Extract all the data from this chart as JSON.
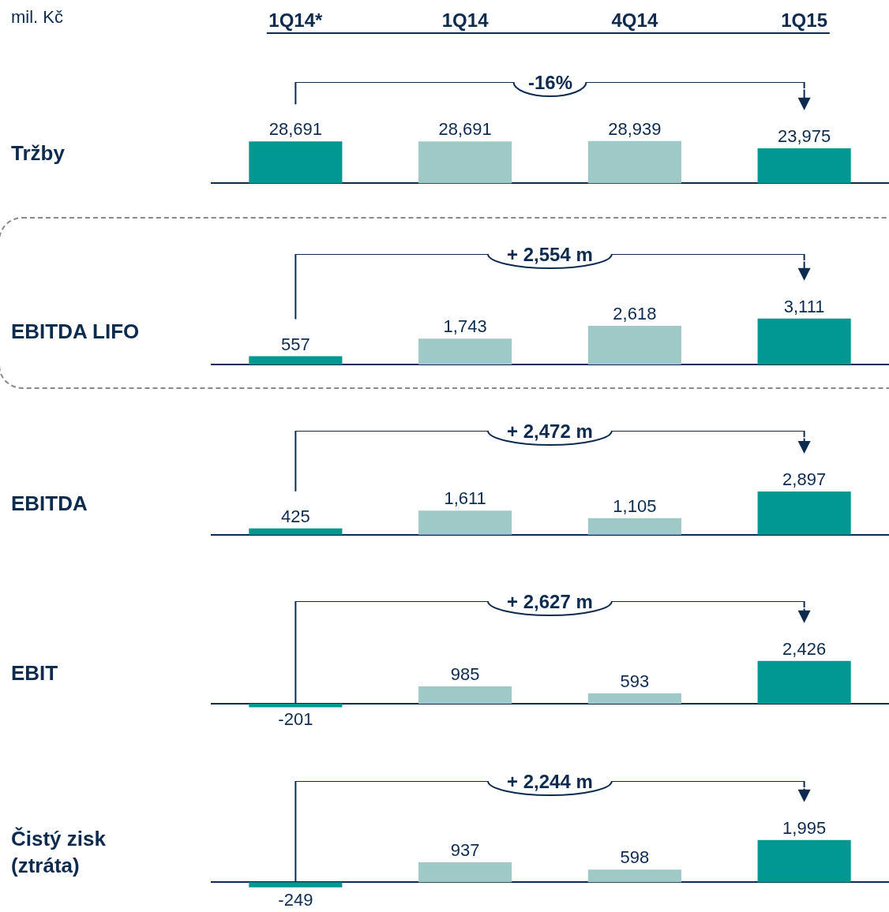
{
  "chart_data": [
    {
      "type": "bar",
      "ylabel": "Tržby",
      "categories": [
        "1Q14*",
        "1Q14",
        "4Q14",
        "1Q15"
      ],
      "values": [
        28691,
        28691,
        28939,
        23975
      ],
      "value_labels": [
        "28,691",
        "28,691",
        "28,939",
        "23,975"
      ],
      "colors": [
        "#009890",
        "#9fc9c6",
        "#9fc9c6",
        "#009890"
      ],
      "tick_labels": "x",
      "annotations": [
        "-16%",
        "mil. Kč"
      ]
    },
    {
      "type": "bar",
      "ylabel": "EBITDA LIFO",
      "categories": [
        null,
        null,
        null,
        null
      ],
      "values": [
        557,
        1743,
        2618,
        3111
      ],
      "value_labels": [
        "557",
        "1,743",
        "2,618",
        "3,111"
      ],
      "colors": [
        "#009890",
        "#9fc9c6",
        "#9fc9c6",
        "#009890"
      ],
      "tick_labels": false,
      "annotations": [
        "+ 2,554 m"
      ]
    },
    {
      "type": "bar",
      "ylabel": "EBITDA",
      "categories": [
        null,
        null,
        null,
        null
      ],
      "values": [
        425,
        1611,
        1105,
        2897
      ],
      "value_labels": [
        "425",
        "1,611",
        "1,105",
        "2,897"
      ],
      "colors": [
        "#009890",
        "#9fc9c6",
        "#9fc9c6",
        "#009890"
      ],
      "tick_labels": false,
      "annotations": [
        "+ 2,472 m"
      ]
    },
    {
      "type": "bar",
      "ylabel": "EBIT",
      "categories": [
        null,
        null,
        null,
        null
      ],
      "values": [
        -201,
        985,
        593,
        2426
      ],
      "value_labels": [
        "-201",
        "985",
        "593",
        "2,426"
      ],
      "colors": [
        "#009890",
        "#9fc9c6",
        "#9fc9c6",
        "#009890"
      ],
      "tick_labels": false,
      "annotations": [
        "+ 2,627 m"
      ]
    },
    {
      "type": "bar",
      "ylabel": "Čistý zisk (ztráta)",
      "categories": [
        null,
        null,
        null,
        null
      ],
      "values": [
        -249,
        937,
        598,
        1995
      ],
      "value_labels": [
        "-249",
        "937",
        "598",
        "1,995"
      ],
      "colors": [
        "#009890",
        "#9fc9c6",
        "#9fc9c6",
        "#009890"
      ],
      "tick_labels": false,
      "annotations": [
        "+ 2,244 m"
      ]
    }
  ]
}
